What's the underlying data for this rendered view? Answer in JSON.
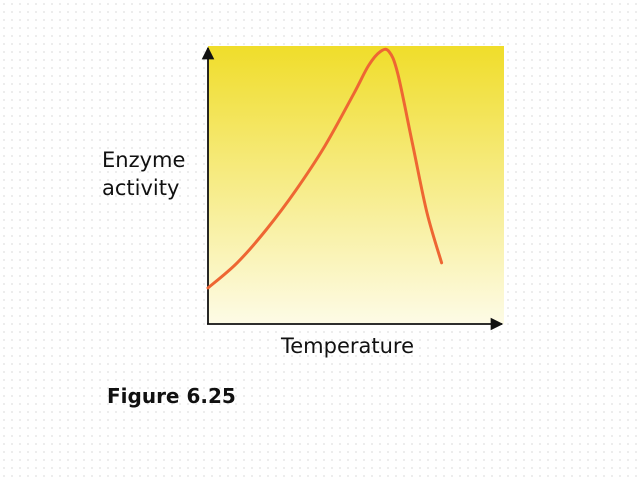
{
  "caption": "Figure 6.25",
  "chart_data": {
    "type": "line",
    "ylabel_lines": [
      "Enzyme",
      "activity"
    ],
    "xlabel": "Temperature",
    "xticks": false,
    "yticks": false,
    "grid": false,
    "legend": false,
    "xlim": [
      0,
      10
    ],
    "ylim": [
      0,
      10
    ],
    "series": [
      {
        "x": [
          0,
          1,
          2,
          3,
          4,
          5,
          5.5,
          5.9,
          6.2,
          6.5,
          7.0,
          7.5,
          8.0
        ],
        "y": [
          1.3,
          2.2,
          3.4,
          4.8,
          6.4,
          8.3,
          9.3,
          9.8,
          9.8,
          9.0,
          6.5,
          4.0,
          2.2
        ],
        "color": "#ee6633"
      }
    ],
    "background_gradient": [
      "#f0dd2a",
      "#fdfbe6"
    ],
    "axis_color": "#111111"
  }
}
